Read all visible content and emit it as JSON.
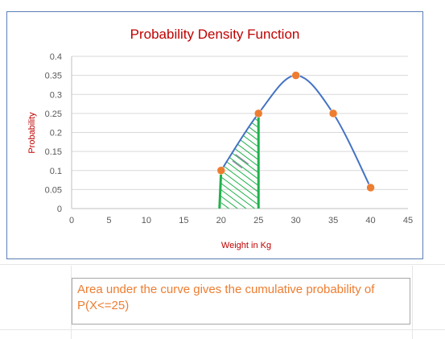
{
  "chart_data": {
    "type": "line",
    "title": "Probability Density Function",
    "xlabel": "Weight in Kg",
    "ylabel": "Probability",
    "xlim": [
      0,
      45
    ],
    "ylim": [
      0,
      0.4
    ],
    "x_ticks": [
      "0",
      "5",
      "10",
      "15",
      "20",
      "25",
      "30",
      "35",
      "40",
      "45"
    ],
    "y_ticks": [
      "0",
      "0.05",
      "0.1",
      "0.15",
      "0.2",
      "0.25",
      "0.3",
      "0.35",
      "0.4"
    ],
    "grid": true,
    "points": [
      {
        "x": 20,
        "y": 0.1
      },
      {
        "x": 25,
        "y": 0.25
      },
      {
        "x": 30,
        "y": 0.35
      },
      {
        "x": 35,
        "y": 0.25
      },
      {
        "x": 40,
        "y": 0.055
      }
    ],
    "shaded_region": {
      "x_from": 20,
      "x_to": 25
    },
    "colors": {
      "title": "#c00000",
      "axis_label": "#c00000",
      "curve": "#4472c4",
      "marker": "#ed7d31",
      "bound_line": "#1fb24a",
      "hatch": "#1fb24a"
    }
  },
  "note": {
    "text": "Area under the curve gives the cumulative probability of P(X<=25)"
  }
}
